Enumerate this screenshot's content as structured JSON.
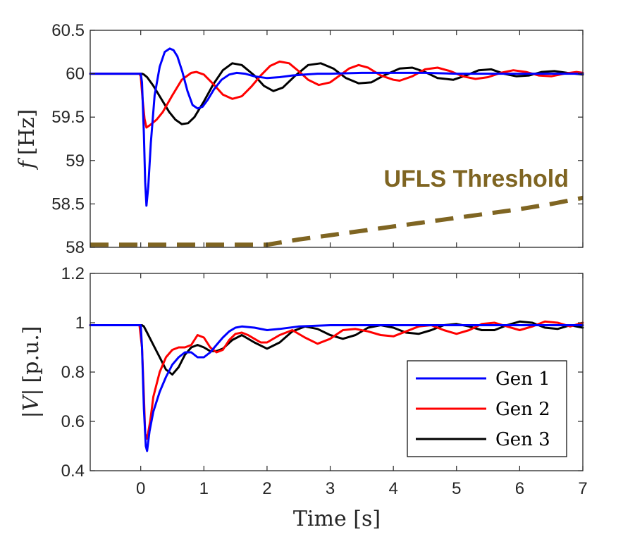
{
  "chart_data": [
    {
      "type": "line",
      "ylabel_var": "f",
      "ylabel_unit": "[Hz]",
      "xlim": [
        -0.8,
        7
      ],
      "ylim": [
        58,
        60.5
      ],
      "xticks": [],
      "yticks": [
        "58",
        "58.5",
        "59",
        "59.5",
        "60",
        "60.5"
      ],
      "annotation": "UFLS Threshold",
      "series": [
        {
          "name": "Gen 1",
          "color": "#0000ff",
          "x": [
            -0.8,
            0.0,
            0.02,
            0.05,
            0.07,
            0.09,
            0.12,
            0.16,
            0.22,
            0.3,
            0.38,
            0.46,
            0.52,
            0.58,
            0.66,
            0.74,
            0.82,
            0.9,
            0.98,
            1.06,
            1.16,
            1.28,
            1.4,
            1.52,
            1.65,
            1.8,
            2.0,
            2.2,
            2.4,
            2.6,
            2.8,
            3.0,
            3.5,
            4.0,
            4.5,
            5.0,
            5.5,
            6.0,
            6.5,
            7.0
          ],
          "y": [
            60,
            60,
            59.9,
            59.3,
            58.75,
            58.48,
            58.7,
            59.2,
            59.75,
            60.08,
            60.25,
            60.29,
            60.27,
            60.2,
            60.02,
            59.8,
            59.64,
            59.6,
            59.62,
            59.7,
            59.82,
            59.93,
            59.99,
            60.01,
            60.0,
            59.97,
            59.95,
            59.96,
            59.98,
            59.99,
            60.0,
            60.0,
            60.01,
            60.01,
            60.01,
            60.0,
            60.0,
            60.0,
            60.0,
            60.0
          ]
        },
        {
          "name": "Gen 2",
          "color": "#ff0000",
          "x": [
            -0.8,
            -0.02,
            0.0,
            0.03,
            0.06,
            0.09,
            0.15,
            0.25,
            0.35,
            0.5,
            0.65,
            0.8,
            0.88,
            1.0,
            1.15,
            1.3,
            1.45,
            1.6,
            1.75,
            1.9,
            2.05,
            2.2,
            2.35,
            2.5,
            2.65,
            2.82,
            3.0,
            3.15,
            3.3,
            3.45,
            3.6,
            3.8,
            4.0,
            4.1,
            4.3,
            4.5,
            4.7,
            4.9,
            5.1,
            5.3,
            5.5,
            5.7,
            5.9,
            6.1,
            6.3,
            6.5,
            6.7,
            6.9,
            7.0
          ],
          "y": [
            60,
            60,
            59.97,
            59.7,
            59.48,
            59.38,
            59.41,
            59.47,
            59.56,
            59.75,
            59.93,
            60.01,
            60.02,
            59.99,
            59.88,
            59.76,
            59.71,
            59.74,
            59.85,
            59.98,
            60.09,
            60.14,
            60.12,
            60.03,
            59.93,
            59.87,
            59.9,
            59.98,
            60.06,
            60.1,
            60.07,
            59.98,
            59.93,
            59.92,
            59.97,
            60.05,
            60.07,
            60.03,
            59.97,
            59.94,
            59.96,
            60.01,
            60.04,
            60.02,
            59.98,
            59.97,
            60.0,
            60.02,
            60.01
          ]
        },
        {
          "name": "Gen 3",
          "color": "#000000",
          "x": [
            -0.8,
            0.02,
            0.05,
            0.1,
            0.2,
            0.3,
            0.45,
            0.55,
            0.65,
            0.75,
            0.85,
            1.0,
            1.15,
            1.3,
            1.45,
            1.6,
            1.8,
            1.95,
            2.1,
            2.25,
            2.45,
            2.65,
            2.85,
            3.05,
            3.25,
            3.45,
            3.65,
            3.85,
            4.1,
            4.3,
            4.5,
            4.7,
            4.95,
            5.15,
            5.35,
            5.55,
            5.75,
            5.95,
            6.15,
            6.35,
            6.55,
            6.75,
            7.0
          ],
          "y": [
            60,
            60,
            59.99,
            59.96,
            59.86,
            59.74,
            59.56,
            59.47,
            59.42,
            59.43,
            59.5,
            59.68,
            59.88,
            60.04,
            60.12,
            60.1,
            59.98,
            59.86,
            59.8,
            59.84,
            59.98,
            60.1,
            60.12,
            60.06,
            59.95,
            59.89,
            59.9,
            59.98,
            60.06,
            60.07,
            60.02,
            59.95,
            59.93,
            59.98,
            60.04,
            60.05,
            60.0,
            59.97,
            59.98,
            60.02,
            60.03,
            60.01,
            59.99
          ]
        }
      ],
      "threshold": {
        "color": "#7f6522",
        "x": [
          -0.8,
          2.0,
          2.5,
          3.0,
          3.5,
          4.0,
          4.5,
          5.0,
          5.5,
          6.0,
          6.5,
          7.0
        ],
        "y": [
          58.03,
          58.03,
          58.09,
          58.14,
          58.19,
          58.24,
          58.29,
          58.34,
          58.39,
          58.44,
          58.5,
          58.57
        ]
      }
    },
    {
      "type": "line",
      "ylabel_var": "|V|",
      "ylabel_unit": "[p.u.]",
      "xlabel": "Time [s]",
      "xlim": [
        -0.8,
        7
      ],
      "ylim": [
        0.4,
        1.2
      ],
      "xticks": [
        "0",
        "1",
        "2",
        "3",
        "4",
        "5",
        "6",
        "7"
      ],
      "yticks": [
        "0.4",
        "0.6",
        "0.8",
        "1",
        "1.2"
      ],
      "series": [
        {
          "name": "Gen 1",
          "color": "#0000ff",
          "x": [
            -0.8,
            0.0,
            0.02,
            0.05,
            0.08,
            0.1,
            0.14,
            0.2,
            0.3,
            0.4,
            0.5,
            0.6,
            0.7,
            0.8,
            0.9,
            1.0,
            1.1,
            1.2,
            1.3,
            1.4,
            1.5,
            1.6,
            1.8,
            2.0,
            2.2,
            2.5,
            3.0,
            3.5,
            4.0,
            5.0,
            6.0,
            7.0
          ],
          "y": [
            0.99,
            0.99,
            0.9,
            0.65,
            0.5,
            0.48,
            0.56,
            0.64,
            0.72,
            0.78,
            0.83,
            0.86,
            0.88,
            0.88,
            0.86,
            0.86,
            0.88,
            0.91,
            0.94,
            0.965,
            0.98,
            0.985,
            0.98,
            0.97,
            0.975,
            0.985,
            0.99,
            0.99,
            0.99,
            0.99,
            0.99,
            0.99
          ]
        },
        {
          "name": "Gen 2",
          "color": "#ff0000",
          "x": [
            -0.8,
            -0.02,
            0.02,
            0.05,
            0.07,
            0.1,
            0.15,
            0.2,
            0.3,
            0.4,
            0.5,
            0.6,
            0.7,
            0.8,
            0.9,
            1.0,
            1.1,
            1.2,
            1.3,
            1.4,
            1.5,
            1.6,
            1.7,
            1.8,
            1.9,
            2.0,
            2.2,
            2.4,
            2.6,
            2.8,
            3.0,
            3.2,
            3.4,
            3.6,
            3.8,
            4.0,
            4.2,
            4.4,
            4.6,
            4.8,
            5.0,
            5.2,
            5.4,
            5.6,
            5.8,
            6.0,
            6.2,
            6.4,
            6.6,
            6.8,
            7.0
          ],
          "y": [
            0.99,
            0.99,
            0.9,
            0.7,
            0.55,
            0.53,
            0.6,
            0.7,
            0.8,
            0.86,
            0.89,
            0.9,
            0.9,
            0.91,
            0.95,
            0.94,
            0.9,
            0.88,
            0.89,
            0.93,
            0.955,
            0.96,
            0.95,
            0.935,
            0.92,
            0.92,
            0.95,
            0.97,
            0.94,
            0.915,
            0.935,
            0.97,
            0.975,
            0.965,
            0.95,
            0.945,
            0.965,
            0.985,
            0.99,
            0.97,
            0.955,
            0.97,
            0.995,
            1.0,
            0.985,
            0.97,
            0.985,
            1.005,
            1.0,
            0.985,
            1.0
          ]
        },
        {
          "name": "Gen 3",
          "color": "#000000",
          "x": [
            -0.8,
            0.02,
            0.05,
            0.1,
            0.2,
            0.3,
            0.4,
            0.5,
            0.6,
            0.7,
            0.8,
            0.9,
            1.0,
            1.1,
            1.2,
            1.3,
            1.45,
            1.6,
            1.8,
            2.0,
            2.2,
            2.4,
            2.6,
            2.8,
            3.0,
            3.2,
            3.4,
            3.6,
            3.8,
            4.0,
            4.2,
            4.4,
            4.6,
            4.8,
            5.0,
            5.2,
            5.4,
            5.6,
            5.8,
            6.0,
            6.2,
            6.4,
            6.6,
            6.8,
            7.0
          ],
          "y": [
            0.99,
            0.99,
            0.985,
            0.96,
            0.91,
            0.86,
            0.81,
            0.79,
            0.82,
            0.87,
            0.9,
            0.91,
            0.9,
            0.885,
            0.885,
            0.895,
            0.93,
            0.95,
            0.92,
            0.895,
            0.92,
            0.965,
            0.985,
            0.975,
            0.95,
            0.935,
            0.95,
            0.98,
            0.99,
            0.98,
            0.96,
            0.955,
            0.97,
            0.99,
            0.995,
            0.985,
            0.97,
            0.97,
            0.99,
            1.005,
            1.0,
            0.98,
            0.975,
            0.99,
            0.98
          ]
        }
      ],
      "legend": {
        "placement": "lower-right",
        "entries": [
          {
            "label": "Gen 1",
            "color": "#0000ff"
          },
          {
            "label": "Gen 2",
            "color": "#ff0000"
          },
          {
            "label": "Gen 3",
            "color": "#000000"
          }
        ]
      }
    }
  ]
}
